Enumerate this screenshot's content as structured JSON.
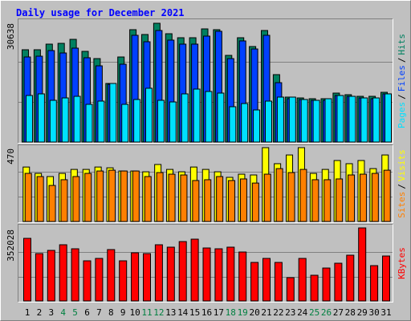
{
  "chart_data": {
    "type": "bar",
    "title": "Daily usage for December 2021",
    "categories": [
      1,
      2,
      3,
      4,
      5,
      6,
      7,
      8,
      9,
      10,
      11,
      12,
      13,
      14,
      15,
      16,
      17,
      18,
      19,
      20,
      21,
      22,
      23,
      24,
      25,
      26,
      27,
      28,
      29,
      30,
      31
    ],
    "category_colors": [
      "#000000",
      "#000000",
      "#000000",
      "#008040",
      "#008040",
      "#000000",
      "#000000",
      "#000000",
      "#000000",
      "#000000",
      "#008040",
      "#008040",
      "#000000",
      "#000000",
      "#000000",
      "#000000",
      "#000000",
      "#008040",
      "#008040",
      "#000000",
      "#000000",
      "#000000",
      "#000000",
      "#000000",
      "#008040",
      "#008040",
      "#000000",
      "#000000",
      "#000000",
      "#000000",
      "#000000"
    ],
    "legend_separator": "/",
    "panels": [
      {
        "ylim": [
          0,
          30638
        ],
        "yticks": [
          30638
        ],
        "gridlines": [
          10213,
          20425
        ],
        "series": [
          {
            "name": "Hits",
            "color": "#008060",
            "values": [
              23490,
              23490,
              24920,
              25120,
              26140,
              23080,
              21240,
              14910,
              21650,
              28600,
              27370,
              30230,
              27570,
              26550,
              26550,
              28800,
              28600,
              22060,
              26550,
              24310,
              28390,
              17160,
              11440,
              11230,
              11030,
              11030,
              12460,
              12050,
              11640,
              11640,
              12660
            ]
          },
          {
            "name": "Files",
            "color": "#0040ff",
            "values": [
              21650,
              21850,
              23280,
              22670,
              23900,
              21450,
              19400,
              14710,
              19810,
              27170,
              25530,
              28390,
              25940,
              24920,
              24920,
              26960,
              28190,
              21240,
              25740,
              23690,
              27170,
              15110,
              11030,
              10830,
              10620,
              10620,
              11850,
              11640,
              11230,
              11030,
              12260
            ]
          },
          {
            "name": "Pages",
            "color": "#00e0ff",
            "values": [
              11850,
              12260,
              10620,
              11230,
              11640,
              9600,
              10420,
              14910,
              9600,
              10830,
              13690,
              10620,
              10210,
              12260,
              13480,
              12870,
              12460,
              8990,
              9800,
              8170,
              10420,
              11440,
              11440,
              10830,
              10620,
              11030,
              11850,
              11640,
              11230,
              11230,
              12260
            ]
          }
        ]
      },
      {
        "ylim": [
          0,
          470
        ],
        "yticks": [
          470
        ],
        "gridlines": [
          157,
          313
        ],
        "series": [
          {
            "name": "Visits",
            "color": "#ffff00",
            "values": [
              343,
              303,
              283,
              303,
              328,
              328,
              343,
              338,
              318,
              318,
              313,
              359,
              328,
              313,
              343,
              328,
              313,
              278,
              298,
              293,
              465,
              364,
              419,
              465,
              303,
              328,
              384,
              364,
              384,
              333,
              419
            ]
          },
          {
            "name": "Sites",
            "color": "#ff8000",
            "values": [
              303,
              283,
              227,
              263,
              283,
              303,
              318,
              323,
              318,
              318,
              283,
              308,
              298,
              293,
              258,
              263,
              283,
              258,
              268,
              242,
              298,
              333,
              308,
              328,
              263,
              263,
              268,
              293,
              298,
              303,
              323
            ]
          }
        ]
      },
      {
        "ylim": [
          0,
          352028
        ],
        "yticks": [
          352028
        ],
        "gridlines": [
          117343,
          234685
        ],
        "series": [
          {
            "name": "KBytes",
            "color": "#ff0000",
            "values": [
              301700,
              228200,
              243700,
              270800,
              251400,
              193400,
              205000,
              247600,
              193400,
              232100,
              228200,
              270800,
              259200,
              286200,
              297800,
              255300,
              251400,
              259200,
              235900,
              185700,
              205000,
              185700,
              112200,
              205000,
              123800,
              158600,
              181800,
              220500,
              352028,
              170200,
              216600
            ]
          }
        ]
      }
    ]
  }
}
